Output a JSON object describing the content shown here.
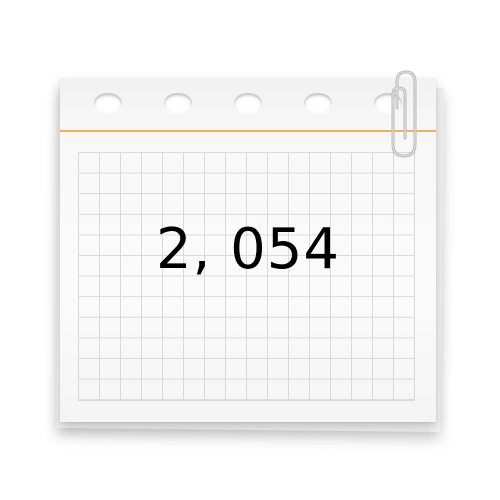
{
  "note": {
    "value": "2, 054"
  },
  "colors": {
    "binding_line": "#f4b055",
    "grid_line": "#d9d9d9",
    "paper": "#f7f7f7",
    "text": "#000000"
  },
  "icons": {
    "clip": "paperclip-icon"
  }
}
